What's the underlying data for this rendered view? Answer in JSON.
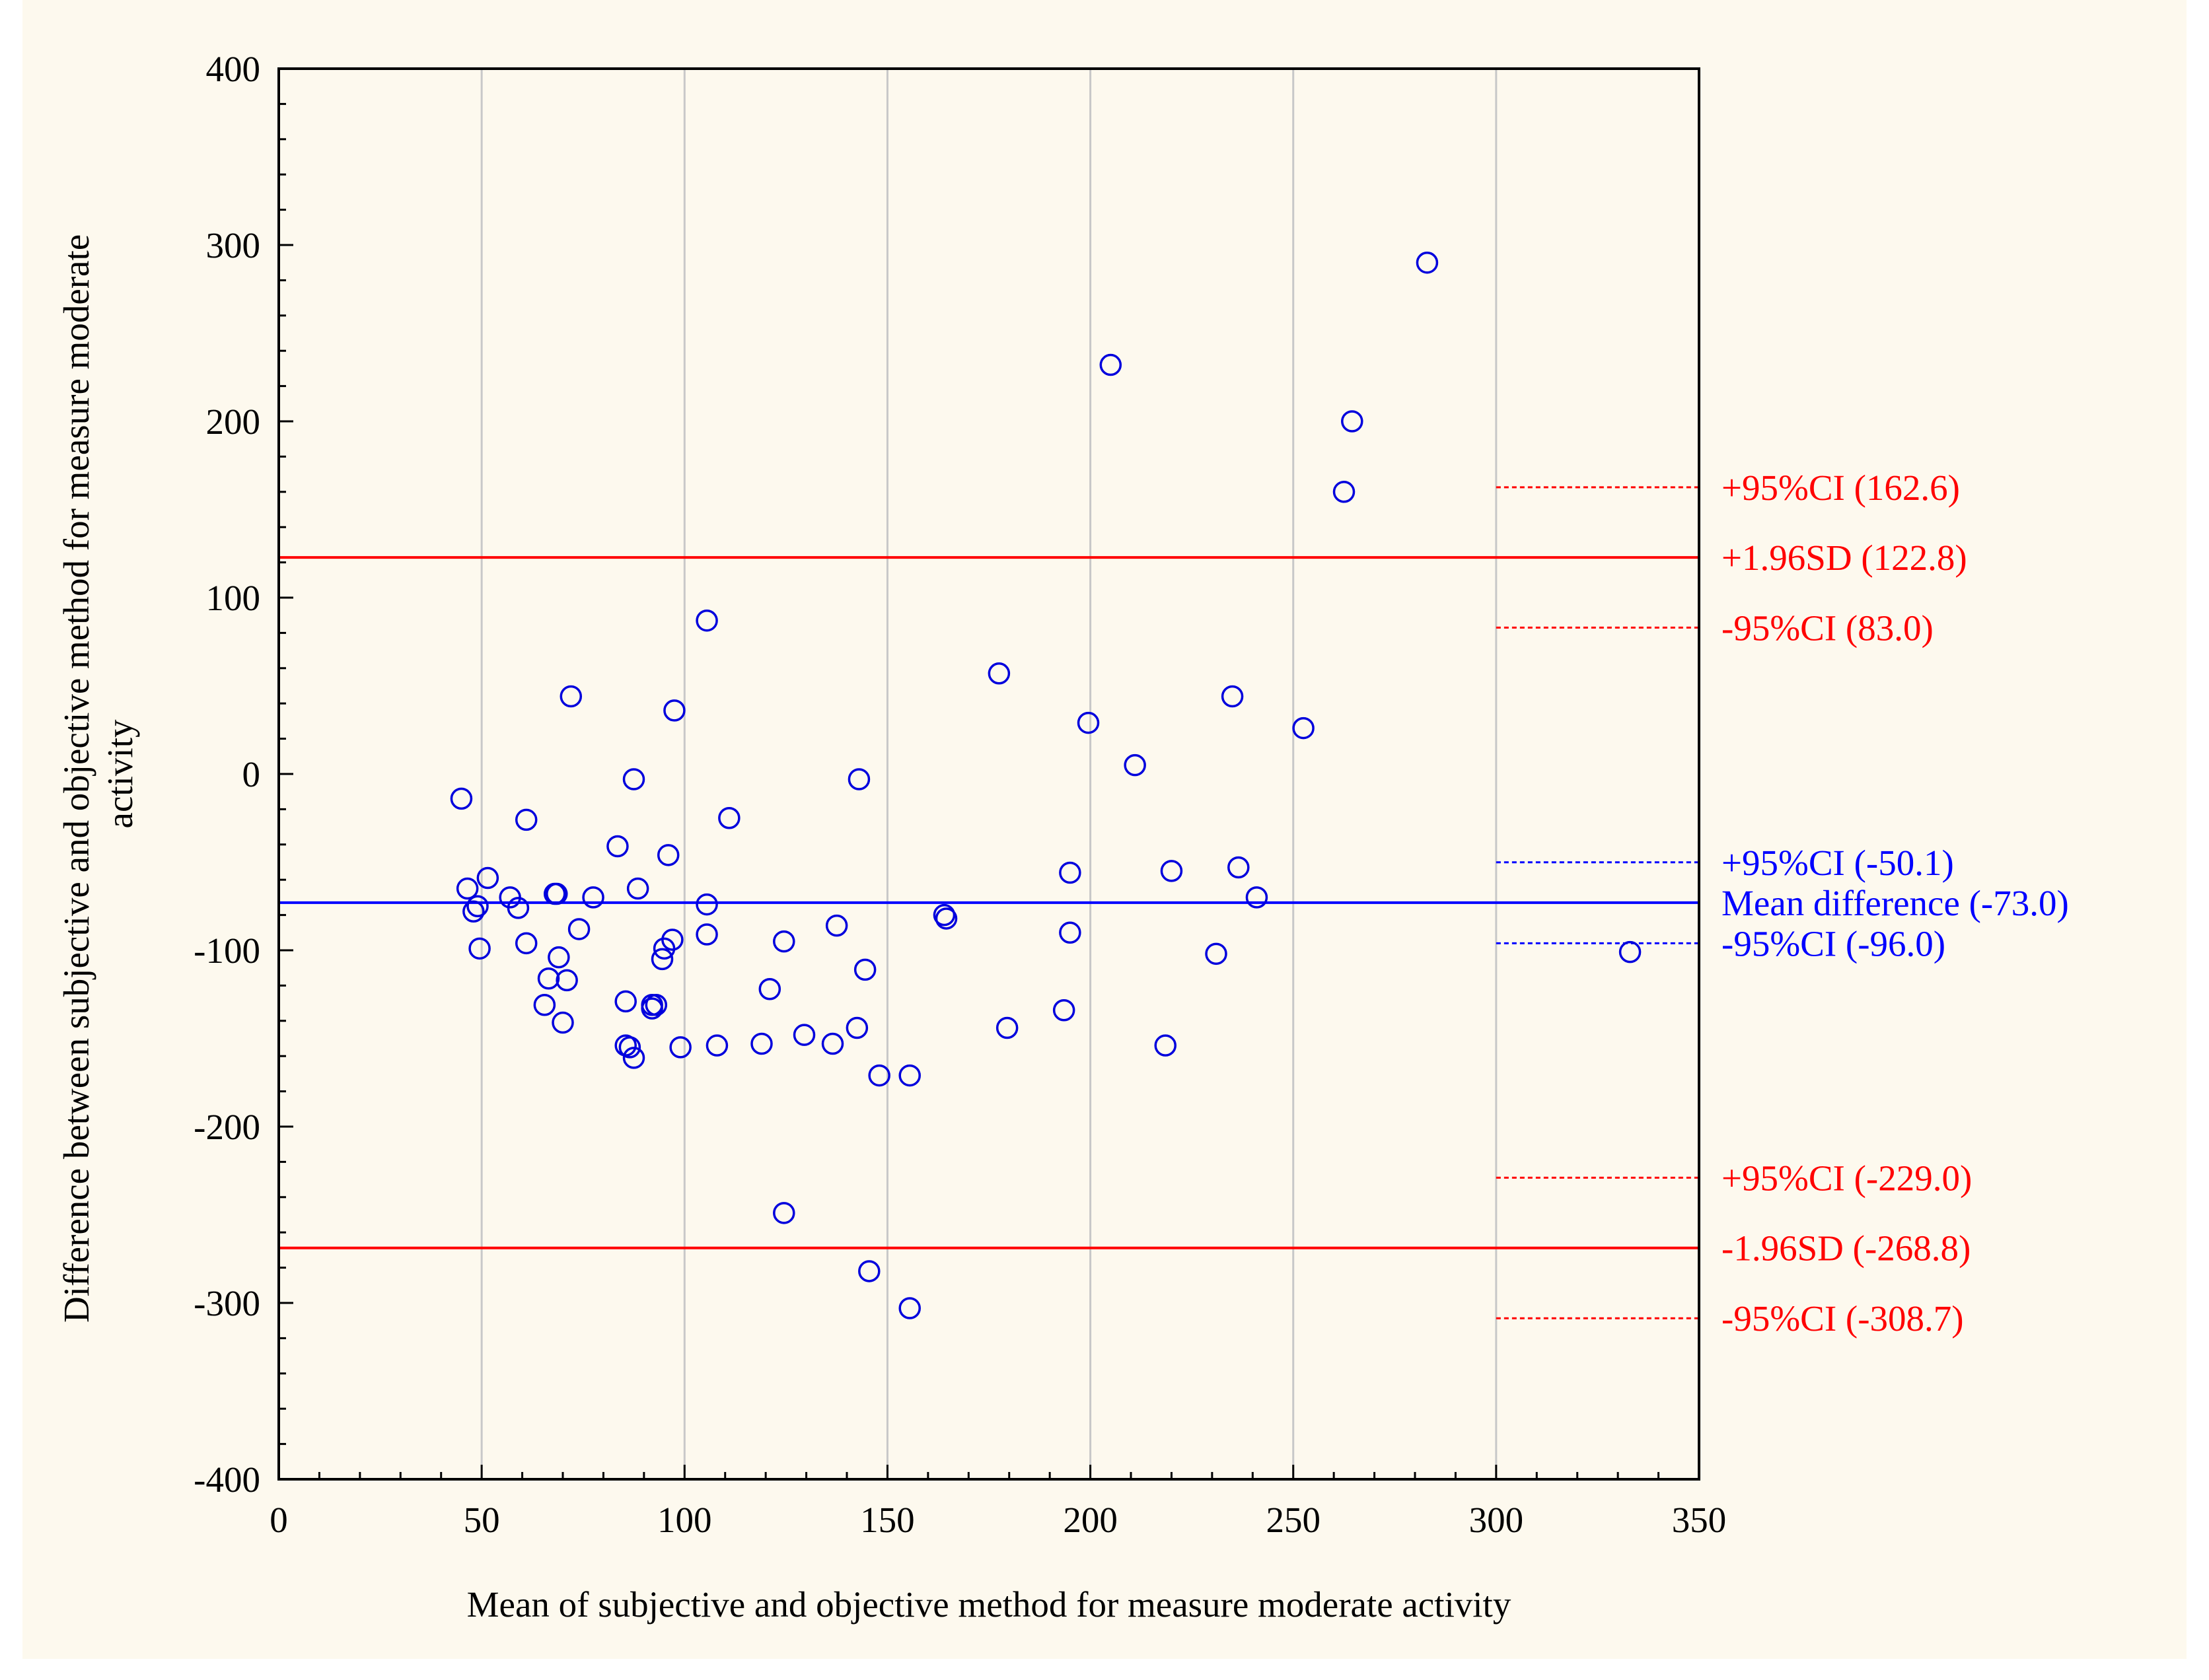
{
  "chart_data": {
    "type": "scatter",
    "title": "",
    "xlabel": "Mean of subjective and objective method for measure moderate activity",
    "ylabel_lines": [
      "Difference between subjective and objective method for measure moderate",
      "activity"
    ],
    "xlim": [
      0,
      350
    ],
    "ylim": [
      -400,
      400
    ],
    "x_ticks": [
      0,
      50,
      100,
      150,
      200,
      250,
      300,
      350
    ],
    "y_ticks": [
      400,
      300,
      200,
      100,
      0,
      -100,
      -200,
      -300,
      -400
    ],
    "x_tick_labels": [
      "0",
      "50",
      "100",
      "150",
      "200",
      "250",
      "300",
      "350"
    ],
    "y_tick_labels": [
      "400",
      "300",
      "200",
      "100",
      "0",
      "-100",
      "-200",
      "-300",
      "-400"
    ],
    "grid": true,
    "colors": {
      "points": "#0000dd",
      "limits": "#ff0000",
      "mean": "#0000ff",
      "axes": "#000000",
      "grid": "#c8c8c8"
    },
    "reference_lines": [
      {
        "name": "upper-ci-upper-loa",
        "value": 162.6,
        "label": "+95%CI (162.6)",
        "style": "dotted",
        "color": "#ff0000",
        "full_width": false
      },
      {
        "name": "upper-loa",
        "value": 122.8,
        "label": "+1.96SD (122.8)",
        "style": "solid",
        "color": "#ff0000",
        "full_width": true
      },
      {
        "name": "lower-ci-upper-loa",
        "value": 83.0,
        "label": "-95%CI (83.0)",
        "style": "dotted",
        "color": "#ff0000",
        "full_width": false
      },
      {
        "name": "upper-ci-mean",
        "value": -50.1,
        "label": "+95%CI (-50.1)",
        "style": "dotted",
        "color": "#0000ff",
        "full_width": false
      },
      {
        "name": "mean-difference",
        "value": -73.0,
        "label": "Mean difference (-73.0)",
        "style": "solid",
        "color": "#0000ff",
        "full_width": true
      },
      {
        "name": "lower-ci-mean",
        "value": -96.0,
        "label": "-95%CI (-96.0)",
        "style": "dotted",
        "color": "#0000ff",
        "full_width": false
      },
      {
        "name": "upper-ci-lower-loa",
        "value": -229.0,
        "label": "+95%CI (-229.0)",
        "style": "dotted",
        "color": "#ff0000",
        "full_width": false
      },
      {
        "name": "lower-loa",
        "value": -268.8,
        "label": "-1.96SD (-268.8)",
        "style": "solid",
        "color": "#ff0000",
        "full_width": true
      },
      {
        "name": "lower-ci-lower-loa",
        "value": -308.7,
        "label": "-95%CI (-308.7)",
        "style": "dotted",
        "color": "#ff0000",
        "full_width": false
      }
    ],
    "ci_segment_x_start": 300,
    "points": [
      [
        45,
        -14
      ],
      [
        46.5,
        -65
      ],
      [
        48,
        -78
      ],
      [
        49,
        -75
      ],
      [
        49.5,
        -99
      ],
      [
        51.5,
        -59
      ],
      [
        57,
        -70
      ],
      [
        59,
        -76
      ],
      [
        61,
        -26
      ],
      [
        61,
        -96
      ],
      [
        65.5,
        -131
      ],
      [
        66.5,
        -116
      ],
      [
        68,
        -68
      ],
      [
        68.5,
        -68
      ],
      [
        69,
        -104
      ],
      [
        70,
        -141
      ],
      [
        71,
        -117
      ],
      [
        72,
        44
      ],
      [
        74,
        -88
      ],
      [
        77.5,
        -70
      ],
      [
        83.5,
        -41
      ],
      [
        85.5,
        -129
      ],
      [
        85.5,
        -154
      ],
      [
        86.5,
        -155
      ],
      [
        87.5,
        -3
      ],
      [
        87.5,
        -161
      ],
      [
        88.5,
        -65
      ],
      [
        92,
        -131
      ],
      [
        92,
        -133
      ],
      [
        93,
        -131
      ],
      [
        94.5,
        -105
      ],
      [
        95,
        -99
      ],
      [
        96,
        -46
      ],
      [
        97,
        -94
      ],
      [
        97.5,
        36
      ],
      [
        99,
        -155
      ],
      [
        105.5,
        87
      ],
      [
        105.5,
        -91
      ],
      [
        105.5,
        -74
      ],
      [
        108,
        -154
      ],
      [
        111,
        -25
      ],
      [
        119,
        -153
      ],
      [
        121,
        -122
      ],
      [
        124.5,
        -249
      ],
      [
        124.5,
        -95
      ],
      [
        129.5,
        -148
      ],
      [
        136.5,
        -153
      ],
      [
        137.5,
        -86
      ],
      [
        142.5,
        -144
      ],
      [
        143,
        -3
      ],
      [
        144.5,
        -111
      ],
      [
        145.5,
        -282
      ],
      [
        148,
        -171
      ],
      [
        155.5,
        -303
      ],
      [
        155.5,
        -171
      ],
      [
        164,
        -80
      ],
      [
        164.5,
        -82
      ],
      [
        177.5,
        57
      ],
      [
        179.5,
        -144
      ],
      [
        193.5,
        -134
      ],
      [
        195,
        -56
      ],
      [
        195,
        -90
      ],
      [
        199.5,
        29
      ],
      [
        205,
        232
      ],
      [
        211,
        5
      ],
      [
        218.5,
        -154
      ],
      [
        220,
        -55
      ],
      [
        231,
        -102
      ],
      [
        235,
        44
      ],
      [
        236.5,
        -53
      ],
      [
        241,
        -70
      ],
      [
        252.5,
        26
      ],
      [
        262.5,
        160
      ],
      [
        264.5,
        200
      ],
      [
        283,
        290
      ],
      [
        333,
        -101
      ]
    ]
  }
}
